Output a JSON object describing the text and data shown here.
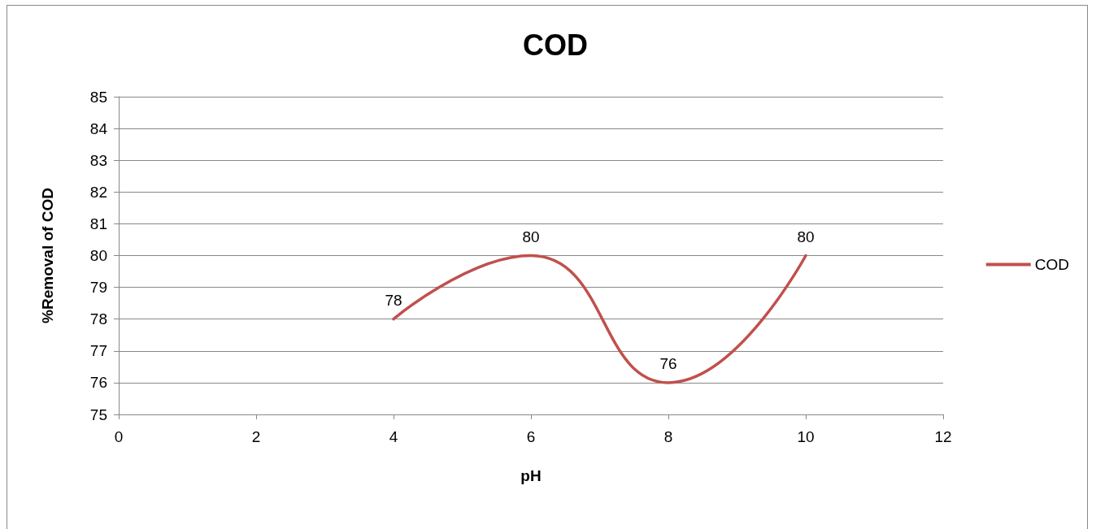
{
  "chart_data": {
    "type": "line",
    "title": "COD",
    "xlabel": "pH",
    "ylabel": "%Removal of COD",
    "x": [
      4,
      6,
      8,
      10
    ],
    "series": [
      {
        "name": "COD",
        "color": "#c0504d",
        "values": [
          78,
          80,
          76,
          80
        ]
      }
    ],
    "xlim": [
      0,
      12
    ],
    "xticks": [
      0,
      2,
      4,
      6,
      8,
      10,
      12
    ],
    "ylim": [
      75,
      85
    ],
    "yticks": [
      75,
      76,
      77,
      78,
      79,
      80,
      81,
      82,
      83,
      84,
      85
    ],
    "grid": "y",
    "legend": "right",
    "data_labels": true,
    "marker": "none",
    "line_style": "solid"
  }
}
